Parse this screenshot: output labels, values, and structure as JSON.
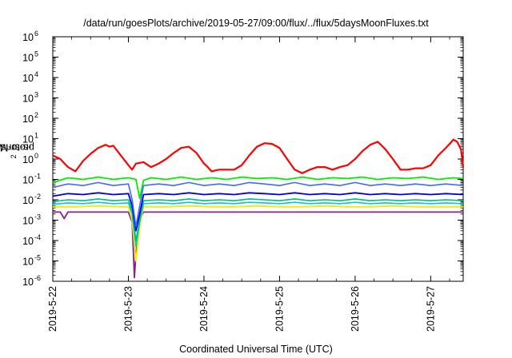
{
  "chart_data": {
    "type": "line",
    "title": "/data/run/goesPlots/archive/2019-05-27/09:00/flux/../flux/5daysMoonFluxes.txt",
    "xlabel": "Coordinated Universal Time (UTC)",
    "ylabel_prefix": "protons/cm",
    "ylabel_sup": "2",
    "ylabel_suffix": "-s-sr-MeV",
    "y_scale": "log",
    "ylim": [
      1e-06,
      1000000.0
    ],
    "y_tick_mantissa": "10",
    "y_tick_exponents": [
      "-6",
      "-5",
      "-4",
      "-3",
      "-2",
      "-1",
      "0",
      "1",
      "2",
      "3",
      "4",
      "5",
      "6"
    ],
    "x_tick_labels": [
      "2019-5-22",
      "2019-5-23",
      "2019-5-24",
      "2019-5-25",
      "2019-5-26",
      "2019-5-27"
    ],
    "x_range_days": [
      0,
      5.43
    ],
    "series": [
      {
        "color": "#ff0000",
        "width": 2.2,
        "x": [
          0,
          0.1,
          0.2,
          0.3,
          0.4,
          0.5,
          0.6,
          0.7,
          0.75,
          0.8,
          0.9,
          1.0,
          1.05,
          1.1,
          1.2,
          1.3,
          1.4,
          1.5,
          1.6,
          1.7,
          1.8,
          1.9,
          2.0,
          2.05,
          2.1,
          2.2,
          2.3,
          2.4,
          2.5,
          2.6,
          2.7,
          2.8,
          2.9,
          3.0,
          3.1,
          3.2,
          3.3,
          3.4,
          3.5,
          3.6,
          3.7,
          3.8,
          3.9,
          4.0,
          4.1,
          4.2,
          4.3,
          4.4,
          4.5,
          4.6,
          4.7,
          4.8,
          4.9,
          5.0,
          5.1,
          5.2,
          5.25,
          5.3,
          5.35,
          5.4,
          5.43
        ],
        "y": [
          1.5,
          1.0,
          0.4,
          0.25,
          0.8,
          1.8,
          3.5,
          5.0,
          4.0,
          4.5,
          1.5,
          0.5,
          0.3,
          0.6,
          0.7,
          0.4,
          0.6,
          1.0,
          2.0,
          3.5,
          4.0,
          2.0,
          0.6,
          0.4,
          0.25,
          0.3,
          0.3,
          0.3,
          0.5,
          1.5,
          4.0,
          6.0,
          5.5,
          3.5,
          1.0,
          0.3,
          0.2,
          0.3,
          0.4,
          0.4,
          0.3,
          0.4,
          0.5,
          1.0,
          2.5,
          5.0,
          7.0,
          3.0,
          1.0,
          0.3,
          0.3,
          0.35,
          0.35,
          0.5,
          1.5,
          3.5,
          5.5,
          9.0,
          7.0,
          3.0,
          0.4
        ]
      },
      {
        "color": "#00ee00",
        "width": 1.8,
        "x": [
          0,
          0.2,
          0.4,
          0.6,
          0.8,
          1.0,
          1.1,
          1.15,
          1.2,
          1.3,
          1.5,
          1.7,
          1.9,
          2.1,
          2.3,
          2.5,
          2.7,
          2.9,
          3.1,
          3.3,
          3.5,
          3.7,
          3.9,
          4.1,
          4.3,
          4.5,
          4.7,
          4.9,
          5.1,
          5.3,
          5.43
        ],
        "y": [
          0.07,
          0.12,
          0.1,
          0.13,
          0.1,
          0.12,
          0.1,
          0.012,
          0.09,
          0.12,
          0.1,
          0.13,
          0.1,
          0.12,
          0.1,
          0.13,
          0.11,
          0.12,
          0.1,
          0.13,
          0.1,
          0.12,
          0.11,
          0.13,
          0.1,
          0.12,
          0.11,
          0.13,
          0.1,
          0.12,
          0.11
        ]
      },
      {
        "color": "#4169ff",
        "width": 1.6,
        "x": [
          0,
          0.2,
          0.4,
          0.6,
          0.8,
          1.0,
          1.05,
          1.1,
          1.15,
          1.2,
          1.4,
          1.6,
          1.8,
          2.0,
          2.2,
          2.4,
          2.6,
          2.8,
          3.0,
          3.2,
          3.4,
          3.6,
          3.8,
          4.0,
          4.2,
          4.4,
          4.6,
          4.8,
          5.0,
          5.2,
          5.43
        ],
        "y": [
          0.04,
          0.06,
          0.05,
          0.07,
          0.05,
          0.06,
          0.01,
          0.0005,
          0.005,
          0.05,
          0.06,
          0.05,
          0.07,
          0.05,
          0.06,
          0.05,
          0.07,
          0.06,
          0.05,
          0.07,
          0.05,
          0.06,
          0.05,
          0.07,
          0.05,
          0.06,
          0.05,
          0.06,
          0.05,
          0.06,
          0.05
        ]
      },
      {
        "color": "#0000dd",
        "width": 1.8,
        "x": [
          0,
          0.2,
          0.4,
          0.6,
          0.8,
          1.0,
          1.05,
          1.1,
          1.15,
          1.2,
          1.4,
          1.6,
          1.8,
          2.0,
          2.2,
          2.4,
          2.6,
          2.8,
          3.0,
          3.2,
          3.4,
          3.6,
          3.8,
          4.0,
          4.2,
          4.4,
          4.6,
          4.8,
          5.0,
          5.2,
          5.43
        ],
        "y": [
          0.015,
          0.02,
          0.018,
          0.022,
          0.018,
          0.02,
          0.005,
          0.0003,
          0.002,
          0.018,
          0.02,
          0.018,
          0.022,
          0.018,
          0.02,
          0.018,
          0.022,
          0.02,
          0.018,
          0.022,
          0.018,
          0.02,
          0.018,
          0.022,
          0.018,
          0.02,
          0.018,
          0.02,
          0.018,
          0.02,
          0.018
        ]
      },
      {
        "color": "#00bb88",
        "width": 1.6,
        "x": [
          0,
          0.2,
          0.4,
          0.6,
          0.8,
          1.0,
          1.05,
          1.1,
          1.15,
          1.2,
          1.4,
          1.6,
          1.8,
          2.0,
          2.2,
          2.4,
          2.6,
          2.8,
          3.0,
          3.2,
          3.4,
          3.6,
          3.8,
          4.0,
          4.2,
          4.4,
          4.6,
          4.8,
          5.0,
          5.2,
          5.43
        ],
        "y": [
          0.008,
          0.01,
          0.009,
          0.011,
          0.009,
          0.01,
          0.003,
          0.0001,
          0.001,
          0.009,
          0.01,
          0.009,
          0.011,
          0.009,
          0.01,
          0.009,
          0.011,
          0.01,
          0.009,
          0.011,
          0.009,
          0.01,
          0.009,
          0.011,
          0.009,
          0.01,
          0.009,
          0.01,
          0.009,
          0.01,
          0.009
        ]
      },
      {
        "color": "#00cccc",
        "width": 1.6,
        "x": [
          0,
          0.2,
          0.4,
          0.6,
          0.8,
          1.0,
          1.05,
          1.1,
          1.15,
          1.2,
          1.4,
          1.6,
          1.8,
          2.0,
          2.2,
          2.4,
          2.6,
          2.8,
          3.0,
          3.2,
          3.4,
          3.6,
          3.8,
          4.0,
          4.2,
          4.4,
          4.6,
          4.8,
          5.0,
          5.2,
          5.43
        ],
        "y": [
          0.006,
          0.007,
          0.0065,
          0.0075,
          0.0065,
          0.007,
          0.002,
          5e-05,
          0.0008,
          0.0065,
          0.007,
          0.0065,
          0.0075,
          0.0065,
          0.007,
          0.0065,
          0.0075,
          0.007,
          0.0065,
          0.0075,
          0.0065,
          0.007,
          0.0065,
          0.0075,
          0.0065,
          0.007,
          0.0065,
          0.007,
          0.0065,
          0.007,
          0.0065
        ]
      },
      {
        "color": "#eeee00",
        "width": 1.8,
        "x": [
          0,
          0.3,
          0.6,
          0.9,
          1.0,
          1.05,
          1.1,
          1.15,
          1.2,
          1.5,
          1.8,
          2.1,
          2.4,
          2.7,
          3.0,
          3.3,
          3.6,
          3.9,
          4.2,
          4.5,
          4.8,
          5.1,
          5.43
        ],
        "y": [
          0.0045,
          0.0045,
          0.005,
          0.0045,
          0.0045,
          0.001,
          1e-05,
          0.0005,
          0.0045,
          0.0045,
          0.005,
          0.0045,
          0.0045,
          0.005,
          0.0045,
          0.0045,
          0.005,
          0.0045,
          0.0045,
          0.005,
          0.0045,
          0.0045,
          0.0045
        ]
      },
      {
        "color": "#882288",
        "width": 1.8,
        "x": [
          0,
          0.1,
          0.15,
          0.2,
          0.4,
          0.6,
          0.8,
          1.0,
          1.05,
          1.08,
          1.1,
          1.15,
          1.2,
          1.4,
          1.6,
          1.8,
          2.0,
          2.2,
          2.4,
          2.6,
          2.8,
          3.0,
          3.2,
          3.4,
          3.6,
          3.8,
          4.0,
          4.2,
          4.4,
          4.6,
          4.8,
          5.0,
          5.2,
          5.43
        ],
        "y": [
          0.0025,
          0.0025,
          0.0012,
          0.0025,
          0.0025,
          0.0025,
          0.0025,
          0.0025,
          0.0008,
          1.5e-06,
          2e-05,
          0.001,
          0.0025,
          0.0025,
          0.0025,
          0.0025,
          0.0025,
          0.0025,
          0.0025,
          0.0025,
          0.0025,
          0.0025,
          0.0025,
          0.0025,
          0.0025,
          0.0025,
          0.0025,
          0.0025,
          0.0025,
          0.0025,
          0.0025,
          0.0025,
          0.0025,
          0.0025
        ]
      }
    ]
  }
}
